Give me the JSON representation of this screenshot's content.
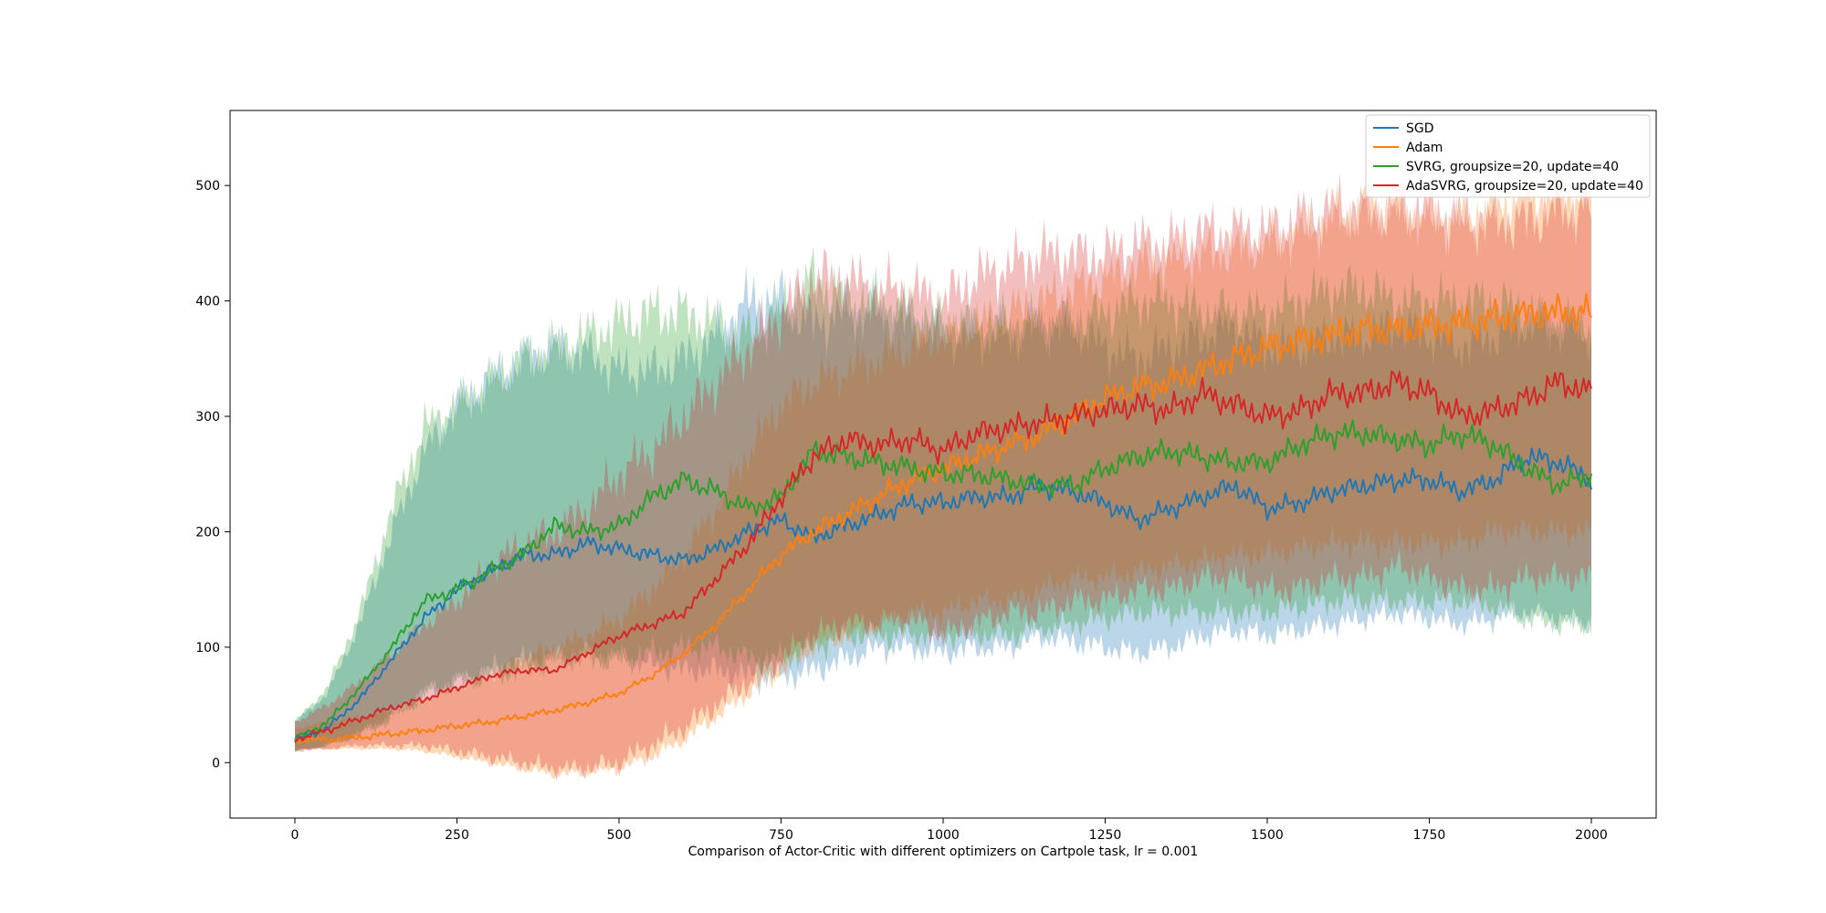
{
  "chart_data": {
    "type": "line",
    "title": "",
    "xlabel": "Comparison of Actor-Critic with different optimizers on Cartpole task, lr = 0.001",
    "ylabel": "",
    "xlim": [
      -100,
      2100
    ],
    "ylim": [
      -48,
      565
    ],
    "xticks": [
      0,
      250,
      500,
      750,
      1000,
      1250,
      1500,
      1750,
      2000
    ],
    "yticks": [
      0,
      100,
      200,
      300,
      400,
      500
    ],
    "grid": false,
    "legend_position": "top-right",
    "band": "shaded spread around each mean line",
    "series": [
      {
        "name": "SGD",
        "color": "#1f77b4",
        "x": [
          0,
          50,
          100,
          150,
          200,
          250,
          300,
          350,
          400,
          450,
          500,
          550,
          600,
          650,
          700,
          750,
          800,
          850,
          900,
          950,
          1000,
          1050,
          1100,
          1150,
          1200,
          1250,
          1300,
          1350,
          1400,
          1450,
          1500,
          1550,
          1600,
          1650,
          1700,
          1750,
          1800,
          1850,
          1900,
          1950,
          2000
        ],
        "mean": [
          20,
          30,
          55,
          90,
          125,
          150,
          165,
          180,
          180,
          190,
          185,
          180,
          175,
          185,
          200,
          210,
          195,
          205,
          215,
          225,
          225,
          230,
          230,
          240,
          235,
          225,
          210,
          220,
          230,
          240,
          220,
          225,
          235,
          240,
          245,
          245,
          235,
          245,
          265,
          260,
          245
        ],
        "upper": [
          35,
          60,
          120,
          200,
          270,
          310,
          330,
          350,
          360,
          355,
          340,
          340,
          350,
          370,
          400,
          400,
          380,
          390,
          390,
          380,
          370,
          370,
          370,
          380,
          380,
          360,
          350,
          360,
          370,
          380,
          360,
          360,
          370,
          370,
          380,
          370,
          360,
          370,
          380,
          380,
          370
        ],
        "lower": [
          10,
          15,
          25,
          40,
          60,
          70,
          80,
          90,
          90,
          95,
          90,
          85,
          80,
          80,
          75,
          75,
          80,
          90,
          100,
          100,
          95,
          100,
          100,
          110,
          105,
          100,
          95,
          100,
          110,
          115,
          110,
          115,
          120,
          125,
          130,
          125,
          120,
          125,
          130,
          125,
          120
        ]
      },
      {
        "name": "Adam",
        "color": "#ff7f0e",
        "x": [
          0,
          50,
          100,
          150,
          200,
          250,
          300,
          350,
          400,
          450,
          500,
          550,
          600,
          650,
          700,
          750,
          800,
          850,
          900,
          950,
          1000,
          1050,
          1100,
          1150,
          1200,
          1250,
          1300,
          1350,
          1400,
          1450,
          1500,
          1550,
          1600,
          1650,
          1700,
          1750,
          1800,
          1850,
          1900,
          1950,
          2000
        ],
        "mean": [
          20,
          20,
          22,
          25,
          28,
          32,
          35,
          40,
          45,
          52,
          60,
          75,
          95,
          120,
          150,
          180,
          200,
          215,
          230,
          245,
          255,
          265,
          275,
          285,
          300,
          315,
          325,
          330,
          340,
          350,
          360,
          365,
          370,
          375,
          375,
          378,
          380,
          385,
          388,
          390,
          390
        ],
        "upper": [
          30,
          35,
          40,
          45,
          55,
          65,
          75,
          90,
          100,
          110,
          125,
          150,
          180,
          220,
          270,
          310,
          330,
          340,
          350,
          360,
          370,
          380,
          390,
          400,
          410,
          420,
          430,
          435,
          440,
          445,
          450,
          460,
          470,
          480,
          480,
          470,
          470,
          480,
          490,
          490,
          490
        ],
        "lower": [
          12,
          12,
          12,
          12,
          10,
          5,
          0,
          -5,
          -10,
          -8,
          -5,
          5,
          20,
          40,
          60,
          80,
          100,
          110,
          120,
          130,
          130,
          140,
          140,
          150,
          160,
          160,
          165,
          170,
          175,
          180,
          180,
          185,
          190,
          190,
          190,
          190,
          190,
          200,
          200,
          200,
          200
        ]
      },
      {
        "name": "SVRG, groupsize=20, update=40",
        "color": "#2ca02c",
        "x": [
          0,
          50,
          100,
          150,
          200,
          250,
          300,
          350,
          400,
          450,
          500,
          550,
          600,
          650,
          700,
          750,
          800,
          850,
          900,
          950,
          1000,
          1050,
          1100,
          1150,
          1200,
          1250,
          1300,
          1350,
          1400,
          1450,
          1500,
          1550,
          1600,
          1650,
          1700,
          1750,
          1800,
          1850,
          1900,
          1950,
          2000
        ],
        "mean": [
          20,
          35,
          65,
          100,
          140,
          150,
          165,
          180,
          205,
          200,
          205,
          230,
          245,
          235,
          220,
          230,
          270,
          265,
          260,
          255,
          250,
          250,
          245,
          240,
          240,
          255,
          265,
          270,
          265,
          260,
          260,
          275,
          285,
          285,
          280,
          275,
          285,
          275,
          255,
          240,
          250
        ],
        "upper": [
          35,
          65,
          130,
          220,
          290,
          310,
          330,
          350,
          360,
          370,
          380,
          390,
          390,
          380,
          370,
          390,
          420,
          400,
          400,
          390,
          380,
          380,
          380,
          380,
          380,
          390,
          400,
          400,
          390,
          390,
          390,
          400,
          410,
          410,
          400,
          400,
          400,
          400,
          390,
          380,
          380
        ],
        "lower": [
          10,
          15,
          25,
          40,
          60,
          70,
          75,
          80,
          90,
          90,
          90,
          95,
          100,
          100,
          90,
          90,
          100,
          110,
          110,
          110,
          110,
          110,
          110,
          115,
          120,
          125,
          130,
          130,
          130,
          130,
          130,
          135,
          140,
          140,
          140,
          140,
          140,
          135,
          125,
          120,
          120
        ]
      },
      {
        "name": "AdaSVRG, groupsize=20, update=40",
        "color": "#d62728",
        "x": [
          0,
          50,
          100,
          150,
          200,
          250,
          300,
          350,
          400,
          450,
          500,
          550,
          600,
          650,
          700,
          750,
          800,
          850,
          900,
          950,
          1000,
          1050,
          1100,
          1150,
          1200,
          1250,
          1300,
          1350,
          1400,
          1450,
          1500,
          1550,
          1600,
          1650,
          1700,
          1750,
          1800,
          1850,
          1900,
          1950,
          2000
        ],
        "mean": [
          20,
          28,
          38,
          48,
          55,
          65,
          75,
          80,
          80,
          95,
          110,
          120,
          130,
          160,
          190,
          230,
          265,
          280,
          275,
          280,
          270,
          285,
          290,
          295,
          300,
          305,
          310,
          305,
          320,
          310,
          300,
          305,
          320,
          320,
          330,
          320,
          300,
          305,
          315,
          330,
          320
        ],
        "upper": [
          35,
          50,
          70,
          95,
          120,
          140,
          170,
          190,
          200,
          220,
          250,
          270,
          300,
          330,
          360,
          390,
          420,
          420,
          410,
          410,
          400,
          420,
          430,
          440,
          440,
          440,
          450,
          450,
          460,
          460,
          460,
          470,
          480,
          480,
          480,
          480,
          470,
          470,
          470,
          480,
          480
        ],
        "lower": [
          10,
          12,
          15,
          15,
          15,
          10,
          5,
          0,
          -5,
          -5,
          0,
          15,
          30,
          50,
          70,
          90,
          110,
          120,
          120,
          125,
          110,
          120,
          130,
          130,
          140,
          140,
          150,
          150,
          160,
          160,
          150,
          150,
          160,
          160,
          170,
          160,
          150,
          150,
          160,
          160,
          160
        ]
      }
    ]
  }
}
